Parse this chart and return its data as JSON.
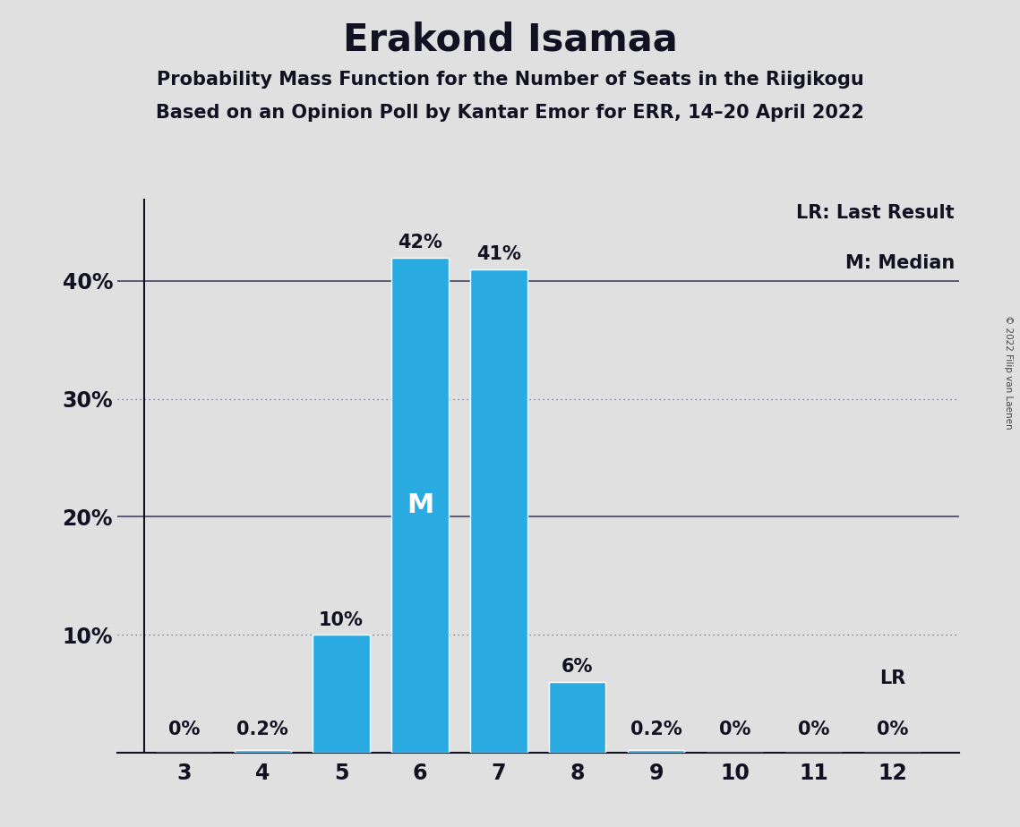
{
  "title": "Erakond Isamaa",
  "subtitle1": "Probability Mass Function for the Number of Seats in the Riigikogu",
  "subtitle2": "Based on an Opinion Poll by Kantar Emor for ERR, 14–20 April 2022",
  "copyright": "© 2022 Filip van Laenen",
  "categories": [
    3,
    4,
    5,
    6,
    7,
    8,
    9,
    10,
    11,
    12
  ],
  "values": [
    0.0,
    0.2,
    10.0,
    42.0,
    41.0,
    6.0,
    0.2,
    0.0,
    0.0,
    0.0
  ],
  "bar_color": "#29ABE2",
  "median_seat": 6,
  "lr_seat": 12,
  "background_color": "#E0E0E0",
  "bar_labels": [
    "0%",
    "0.2%",
    "10%",
    "42%",
    "41%",
    "6%",
    "0.2%",
    "0%",
    "0%",
    "0%"
  ],
  "yticks": [
    0,
    10,
    20,
    30,
    40
  ],
  "ytick_labels": [
    "",
    "10%",
    "20%",
    "30%",
    "40%"
  ],
  "ylim": [
    0,
    47
  ],
  "legend_text1": "LR: Last Result",
  "legend_text2": "M: Median",
  "lr_label": "LR",
  "median_label": "M",
  "title_fontsize": 30,
  "subtitle_fontsize": 15,
  "bar_label_fontsize": 15,
  "axis_tick_fontsize": 17,
  "legend_fontsize": 15,
  "solid_gridline_color": "#444466",
  "dotted_gridline_color": "#666688",
  "solid_gridlines": [
    20,
    40
  ],
  "dotted_gridlines": [
    10,
    30
  ],
  "text_color": "#111122"
}
